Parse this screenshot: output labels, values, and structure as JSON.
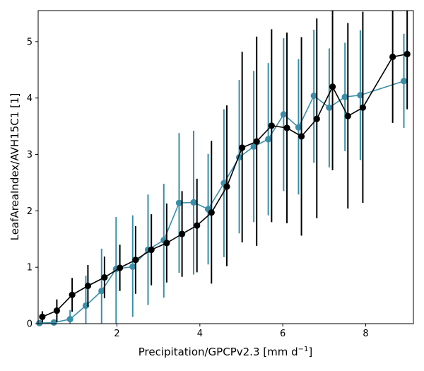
{
  "chart_data": {
    "type": "line",
    "xlabel": "Precipitation/GPCPv2.3 [mm d",
    "xlabel_exponent": "−1",
    "xlabel_suffix": "]",
    "ylabel": "LeafAreaIndex/AVH15C1 [1]",
    "xlim": [
      0.1,
      9.15
    ],
    "ylim": [
      0,
      5.55
    ],
    "xticks": [
      2,
      4,
      6,
      8
    ],
    "yticks": [
      0,
      1,
      2,
      3,
      4,
      5
    ],
    "grid": false,
    "series": [
      {
        "color": "#3a8fa8",
        "x": [
          0.13,
          0.48,
          0.87,
          1.25,
          1.63,
          1.98,
          2.38,
          2.75,
          3.13,
          3.5,
          3.85,
          4.2,
          4.58,
          4.95,
          5.3,
          5.65,
          6.02,
          6.38,
          6.75,
          7.12,
          7.5,
          7.87,
          8.92
        ],
        "y": [
          0.01,
          0.02,
          0.08,
          0.32,
          0.58,
          0.97,
          1.01,
          1.31,
          1.48,
          2.14,
          2.15,
          2.03,
          2.49,
          2.95,
          3.14,
          3.27,
          3.71,
          3.48,
          4.04,
          3.83,
          4.02,
          4.05,
          4.3
        ],
        "err_lo": [
          0.01,
          0.02,
          0.08,
          0.32,
          0.58,
          0.97,
          0.89,
          0.98,
          1.02,
          1.24,
          1.28,
          0.98,
          1.31,
          1.35,
          1.34,
          1.35,
          1.36,
          1.19,
          1.19,
          1.06,
          0.96,
          1.15,
          0.83
        ],
        "err_hi": [
          0.01,
          0.02,
          0.16,
          0.53,
          0.75,
          0.92,
          0.91,
          0.98,
          1.0,
          1.24,
          1.27,
          0.98,
          1.31,
          1.37,
          1.34,
          1.35,
          1.35,
          1.21,
          1.17,
          1.05,
          0.96,
          1.15,
          0.84
        ]
      },
      {
        "color": "#000000",
        "x": [
          0.2,
          0.55,
          0.92,
          1.3,
          1.7,
          2.07,
          2.45,
          2.83,
          3.2,
          3.57,
          3.93,
          4.28,
          4.65,
          5.02,
          5.37,
          5.73,
          6.1,
          6.45,
          6.82,
          7.2,
          7.57,
          7.93,
          8.65,
          9.0
        ],
        "y": [
          0.12,
          0.23,
          0.51,
          0.67,
          0.82,
          0.99,
          1.13,
          1.31,
          1.43,
          1.59,
          1.74,
          1.97,
          2.43,
          3.12,
          3.23,
          3.51,
          3.47,
          3.32,
          3.63,
          4.2,
          3.68,
          3.83,
          4.73,
          4.78
        ],
        "err_lo": [
          0.1,
          0.2,
          0.3,
          0.37,
          0.37,
          0.41,
          0.6,
          0.63,
          0.7,
          0.76,
          0.83,
          1.26,
          1.41,
          1.68,
          1.85,
          1.71,
          1.69,
          1.76,
          1.76,
          1.48,
          1.64,
          1.69,
          1.17,
          0.98
        ],
        "err_hi": [
          0.1,
          0.2,
          0.3,
          0.37,
          0.37,
          0.41,
          0.6,
          0.63,
          0.7,
          0.76,
          0.83,
          1.27,
          1.44,
          1.7,
          1.86,
          1.71,
          1.69,
          1.76,
          1.78,
          1.5,
          1.65,
          1.7,
          1.17,
          1.18
        ]
      }
    ]
  }
}
